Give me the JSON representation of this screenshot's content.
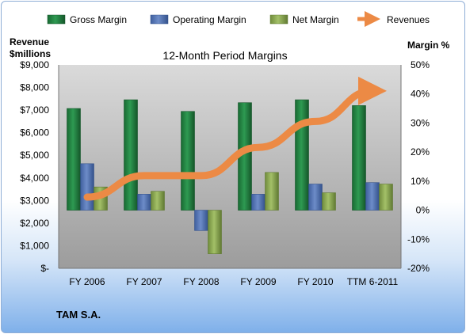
{
  "company": "TAM S.A.",
  "colors": {
    "gross": "#1f7a3c",
    "operating": "#4f6fae",
    "net": "#7f9c4a",
    "revenues": "#ec8a45"
  },
  "chart_data": {
    "type": "bar",
    "title": "12-Month Period Margins",
    "y_left_label_line1": "Revenue",
    "y_left_label_line2": "$millions",
    "y_right_label": "Margin %",
    "categories": [
      "FY 2006",
      "FY 2007",
      "FY 2008",
      "FY 2009",
      "FY 2010",
      "TTM 6-2011"
    ],
    "ylim_left": [
      0,
      9000
    ],
    "ylim_right": [
      -20,
      50
    ],
    "left_ticks": [
      "$-",
      "$1,000",
      "$2,000",
      "$3,000",
      "$4,000",
      "$5,000",
      "$6,000",
      "$7,000",
      "$8,000",
      "$9,000"
    ],
    "right_ticks": [
      "-20%",
      "-10%",
      "0%",
      "10%",
      "20%",
      "30%",
      "40%",
      "50%"
    ],
    "series": [
      {
        "name": "Gross Margin",
        "axis": "right",
        "values": [
          35,
          38,
          34,
          37,
          38,
          36
        ]
      },
      {
        "name": "Operating Margin",
        "axis": "right",
        "values": [
          16,
          5.5,
          -7,
          5.5,
          9,
          9.5
        ]
      },
      {
        "name": "Net Margin",
        "axis": "right",
        "values": [
          8,
          6.5,
          -15,
          13,
          6,
          9
        ]
      },
      {
        "name": "Revenues",
        "type": "line",
        "axis": "left",
        "values": [
          3150,
          4100,
          4100,
          5350,
          6500,
          7850
        ]
      }
    ],
    "legend": "top",
    "grid": false
  }
}
